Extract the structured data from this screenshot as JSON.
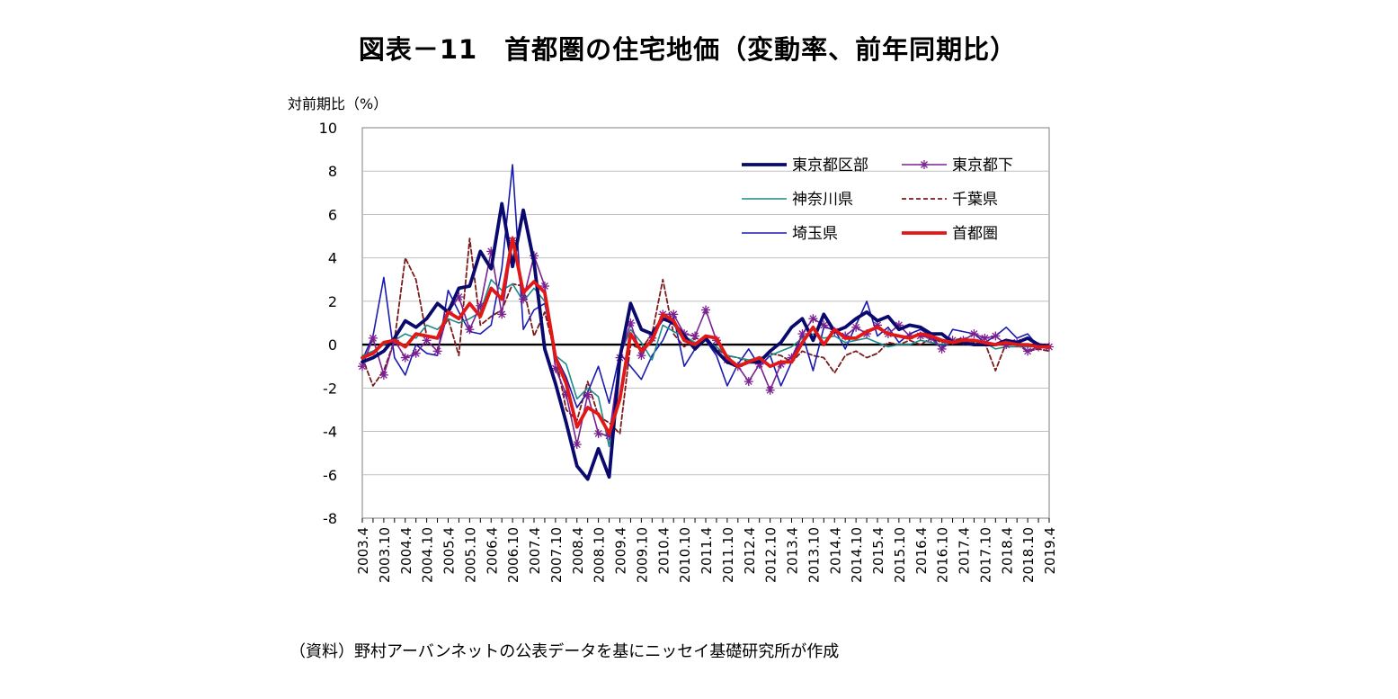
{
  "title": "図表－11　首都圏の住宅地価（変動率、前年同期比）",
  "source": "（資料）野村アーバンネットの公表データを基にニッセイ基礎研究所が作成",
  "chart_data": {
    "type": "line",
    "ylabel": "対前期比（%）",
    "ylim": [
      -8,
      10
    ],
    "yticks": [
      -8,
      -6,
      -4,
      -2,
      0,
      2,
      4,
      6,
      8,
      10
    ],
    "grid": true,
    "legend_position": "top-right",
    "x": [
      "2003.4",
      "2003.7",
      "2003.10",
      "2004.1",
      "2004.4",
      "2004.7",
      "2004.10",
      "2005.1",
      "2005.4",
      "2005.7",
      "2005.10",
      "2006.1",
      "2006.4",
      "2006.7",
      "2006.10",
      "2007.1",
      "2007.4",
      "2007.7",
      "2007.10",
      "2008.1",
      "2008.4",
      "2008.7",
      "2008.10",
      "2009.1",
      "2009.4",
      "2009.7",
      "2009.10",
      "2010.1",
      "2010.4",
      "2010.7",
      "2010.10",
      "2011.1",
      "2011.4",
      "2011.7",
      "2011.10",
      "2012.1",
      "2012.4",
      "2012.7",
      "2012.10",
      "2013.1",
      "2013.4",
      "2013.7",
      "2013.10",
      "2014.1",
      "2014.4",
      "2014.7",
      "2014.10",
      "2015.1",
      "2015.4",
      "2015.7",
      "2015.10",
      "2016.1",
      "2016.4",
      "2016.7",
      "2016.10",
      "2017.1",
      "2017.4",
      "2017.7",
      "2017.10",
      "2018.1",
      "2018.4",
      "2018.7",
      "2018.10",
      "2019.1",
      "2019.4"
    ],
    "x_tick_labels": [
      "2003.4",
      "2003.10",
      "2004.4",
      "2004.10",
      "2005.4",
      "2005.10",
      "2006.4",
      "2006.10",
      "2007.4",
      "2007.10",
      "2008.4",
      "2008.10",
      "2009.4",
      "2009.10",
      "2010.4",
      "2010.10",
      "2011.4",
      "2011.10",
      "2012.4",
      "2012.10",
      "2013.4",
      "2013.10",
      "2014.4",
      "2014.10",
      "2015.4",
      "2015.10",
      "2016.4",
      "2016.10",
      "2017.4",
      "2017.10",
      "2018.4",
      "2018.10",
      "2019.4"
    ],
    "series": [
      {
        "name": "東京都区部",
        "color": "#0a0a6e",
        "style": "thick",
        "values": [
          -0.8,
          -0.6,
          -0.3,
          0.3,
          1.1,
          0.8,
          1.2,
          1.9,
          1.5,
          2.6,
          2.7,
          4.3,
          3.5,
          6.5,
          3.6,
          6.2,
          3.8,
          -0.2,
          -1.8,
          -3.6,
          -5.6,
          -6.2,
          -4.8,
          -6.1,
          -0.6,
          1.9,
          0.7,
          0.5,
          1.2,
          1.0,
          0.4,
          -0.2,
          0.3,
          -0.3,
          -0.8,
          -1.0,
          -0.8,
          -0.8,
          -0.3,
          0.1,
          0.8,
          1.2,
          0.2,
          1.4,
          0.6,
          0.8,
          1.2,
          1.5,
          1.1,
          1.3,
          0.7,
          0.9,
          0.8,
          0.5,
          0.5,
          0.1,
          0.1,
          0.0,
          0.0,
          0.0,
          0.2,
          0.1,
          0.3,
          0.0,
          -0.1
        ]
      },
      {
        "name": "東京都下",
        "color": "#7b2090",
        "style": "star",
        "values": [
          -1.0,
          0.3,
          -1.4,
          0.2,
          -0.6,
          -0.4,
          0.2,
          -0.3,
          1.5,
          2.2,
          0.7,
          1.8,
          4.3,
          1.4,
          4.8,
          2.1,
          4.1,
          2.7,
          -1.1,
          -2.3,
          -4.6,
          -2.3,
          -4.1,
          -4.2,
          -0.6,
          1.0,
          -0.5,
          0.3,
          1.4,
          1.4,
          0.5,
          0.4,
          1.6,
          0.2,
          -0.7,
          -1.0,
          -1.7,
          -0.9,
          -2.1,
          -0.9,
          -0.6,
          0.5,
          1.2,
          0.9,
          0.6,
          0.4,
          0.8,
          0.5,
          0.9,
          0.5,
          0.9,
          0.4,
          0.4,
          0.3,
          -0.2,
          0.2,
          0.2,
          0.5,
          0.3,
          0.4,
          0.0,
          0.1,
          -0.3,
          -0.1,
          -0.1
        ]
      },
      {
        "name": "神奈川県",
        "color": "#1f8a8a",
        "style": "thin",
        "values": [
          -0.5,
          -0.3,
          0.0,
          0.2,
          0.5,
          0.3,
          0.9,
          0.7,
          1.2,
          1.0,
          1.2,
          1.5,
          3.0,
          2.5,
          2.8,
          2.0,
          2.6,
          2.0,
          -0.5,
          -0.9,
          -2.5,
          -2.0,
          -2.4,
          -4.7,
          -0.5,
          0.7,
          0.1,
          -0.7,
          0.9,
          0.6,
          0.4,
          0.1,
          0.2,
          -0.1,
          -0.5,
          -0.6,
          -0.7,
          -0.6,
          -0.5,
          -0.3,
          -0.1,
          0.3,
          0.5,
          0.3,
          0.4,
          0.1,
          0.2,
          0.3,
          0.1,
          -0.1,
          0.0,
          0.0,
          0.2,
          0.1,
          0.0,
          0.1,
          0.1,
          0.0,
          0.1,
          -0.2,
          -0.1,
          -0.1,
          -0.1,
          -0.1,
          -0.2
        ]
      },
      {
        "name": "千葉県",
        "color": "#7a1c1c",
        "style": "dashed",
        "values": [
          -0.6,
          -1.9,
          -1.2,
          0.2,
          4.0,
          3.0,
          0.4,
          0.3,
          1.2,
          -0.5,
          4.9,
          0.9,
          1.3,
          1.6,
          2.8,
          2.7,
          0.4,
          1.5,
          -0.5,
          -3.0,
          -3.5,
          -1.7,
          -3.3,
          -3.6,
          -4.1,
          0.0,
          -0.2,
          0.5,
          3.0,
          0.5,
          -0.1,
          0.3,
          0.2,
          -0.2,
          -0.5,
          -0.6,
          -0.8,
          -0.7,
          -0.4,
          -0.5,
          -0.8,
          -0.3,
          -0.5,
          -0.6,
          -1.3,
          -0.5,
          -0.3,
          -0.6,
          -0.4,
          0.1,
          0.0,
          0.2,
          0.0,
          0.3,
          0.1,
          0.2,
          0.3,
          0.1,
          0.1,
          -1.2,
          0.1,
          0.0,
          -0.3,
          -0.2,
          -0.3
        ]
      },
      {
        "name": "埼玉県",
        "color": "#1a1ab0",
        "style": "thin",
        "values": [
          -0.7,
          0.4,
          3.1,
          -0.6,
          -1.4,
          0.0,
          -0.4,
          -0.5,
          2.5,
          1.5,
          0.6,
          0.5,
          0.9,
          3.5,
          8.3,
          0.7,
          1.6,
          1.9,
          -0.5,
          -1.5,
          -2.9,
          -2.2,
          -1.0,
          -2.7,
          -0.4,
          -1.0,
          -1.6,
          -0.5,
          0.2,
          1.3,
          -1.0,
          -0.2,
          0.2,
          -0.5,
          -1.9,
          -0.9,
          -0.2,
          -1.0,
          -0.5,
          -1.9,
          -0.8,
          0.5,
          -1.2,
          0.8,
          0.7,
          -0.2,
          0.9,
          2.0,
          0.4,
          0.8,
          0.1,
          0.5,
          0.7,
          0.4,
          -0.2,
          0.7,
          0.6,
          0.5,
          0.1,
          0.4,
          0.8,
          0.3,
          0.5,
          -0.1,
          -0.1
        ]
      },
      {
        "name": "首都圏",
        "color": "#e01818",
        "style": "thick",
        "values": [
          -0.6,
          -0.4,
          0.1,
          0.2,
          -0.1,
          0.5,
          0.4,
          0.3,
          1.5,
          1.2,
          1.9,
          1.3,
          2.6,
          2.1,
          4.9,
          2.4,
          2.9,
          2.4,
          -0.6,
          -1.8,
          -3.8,
          -2.9,
          -3.2,
          -4.1,
          -2.5,
          0.5,
          -0.3,
          0.2,
          1.4,
          1.1,
          0.2,
          0.0,
          0.4,
          0.3,
          -0.6,
          -1.0,
          -0.8,
          -0.6,
          -1.0,
          -0.8,
          -0.8,
          0.1,
          0.8,
          0.0,
          0.7,
          0.3,
          0.3,
          0.6,
          0.8,
          0.5,
          0.4,
          0.3,
          0.5,
          0.4,
          0.2,
          0.1,
          0.2,
          0.2,
          0.1,
          0.0,
          0.1,
          0.0,
          0.0,
          -0.1,
          -0.1
        ]
      }
    ]
  }
}
